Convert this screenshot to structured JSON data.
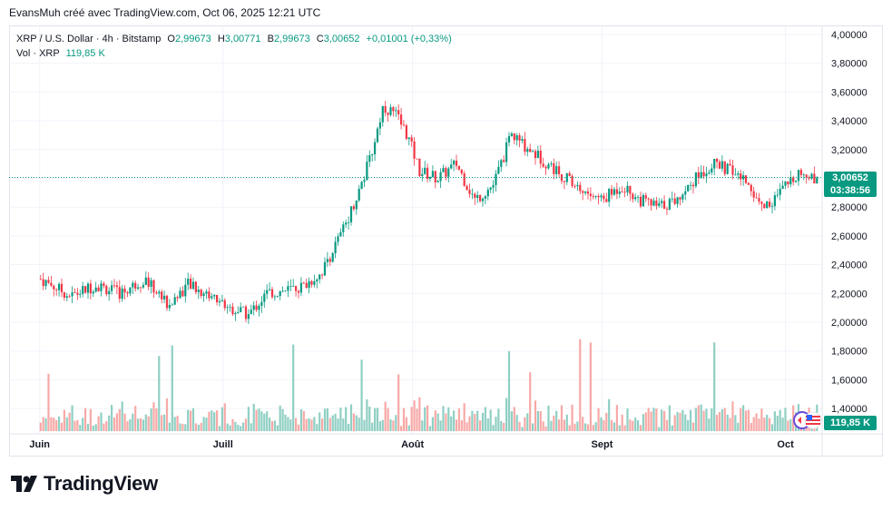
{
  "header": {
    "credit": "EvansMuh créé avec TradingView.com, Oct 06, 2025 12:21 UTC"
  },
  "legend": {
    "symbol": "XRP / U.S. Dollar · 4h · Bitstamp",
    "o_label": "O",
    "o_value": "2,99673",
    "h_label": "H",
    "h_value": "3,00771",
    "b_label": "B",
    "b_value": "2,99673",
    "c_label": "C",
    "c_value": "3,00652",
    "change": "+0,01001 (+0,33%)",
    "vol_label": "Vol · XRP",
    "vol_value": "119,85 K"
  },
  "price_tag": {
    "price": "3,00652",
    "countdown": "03:38:56"
  },
  "volume_tag": "119,85 K",
  "brand": "TradingView",
  "colors": {
    "up": "#089981",
    "down": "#f23645",
    "vol_up": "#8fcfc4",
    "vol_down": "#f7a9a7",
    "grid": "#f0f3fa",
    "price_line": "#089981"
  },
  "chart_data": {
    "type": "candlestick",
    "y_ticks": [
      "4,00000",
      "3,80000",
      "3,60000",
      "3,40000",
      "3,20000",
      "3,00000",
      "2,80000",
      "2,60000",
      "2,40000",
      "2,20000",
      "2,00000",
      "1,80000",
      "1,60000",
      "1,40000"
    ],
    "ylim": [
      1.2,
      4.05
    ],
    "x_ticks": [
      "Juin",
      "Juill",
      "Août",
      "Sept",
      "Oct"
    ],
    "last_price": 3.00652,
    "approx_close_path": [
      [
        "2025-06-01",
        2.3
      ],
      [
        "2025-06-06",
        2.18
      ],
      [
        "2025-06-10",
        2.26
      ],
      [
        "2025-06-14",
        2.2
      ],
      [
        "2025-06-18",
        2.3
      ],
      [
        "2025-06-22",
        2.12
      ],
      [
        "2025-06-25",
        2.26
      ],
      [
        "2025-06-29",
        2.18
      ],
      [
        "2025-07-02",
        2.1
      ],
      [
        "2025-07-05",
        2.05
      ],
      [
        "2025-07-08",
        2.2
      ],
      [
        "2025-07-11",
        2.22
      ],
      [
        "2025-07-14",
        2.25
      ],
      [
        "2025-07-17",
        2.35
      ],
      [
        "2025-07-20",
        2.6
      ],
      [
        "2025-07-23",
        2.9
      ],
      [
        "2025-07-25",
        3.15
      ],
      [
        "2025-07-27",
        3.5
      ],
      [
        "2025-07-29",
        3.45
      ],
      [
        "2025-07-31",
        3.3
      ],
      [
        "2025-08-02",
        3.05
      ],
      [
        "2025-08-05",
        3.0
      ],
      [
        "2025-08-08",
        3.1
      ],
      [
        "2025-08-11",
        2.85
      ],
      [
        "2025-08-14",
        2.95
      ],
      [
        "2025-08-17",
        3.3
      ],
      [
        "2025-08-20",
        3.2
      ],
      [
        "2025-08-23",
        3.1
      ],
      [
        "2025-08-26",
        3.0
      ],
      [
        "2025-08-29",
        2.9
      ],
      [
        "2025-09-01",
        2.85
      ],
      [
        "2025-09-04",
        2.95
      ],
      [
        "2025-09-07",
        2.85
      ],
      [
        "2025-09-10",
        2.8
      ],
      [
        "2025-09-13",
        2.85
      ],
      [
        "2025-09-16",
        3.0
      ],
      [
        "2025-09-19",
        3.1
      ],
      [
        "2025-09-22",
        3.05
      ],
      [
        "2025-09-25",
        2.95
      ],
      [
        "2025-09-27",
        2.8
      ],
      [
        "2025-09-29",
        2.85
      ],
      [
        "2025-10-01",
        2.95
      ],
      [
        "2025-10-03",
        3.05
      ],
      [
        "2025-10-05",
        3.0
      ],
      [
        "2025-10-06",
        3.00652
      ]
    ]
  }
}
